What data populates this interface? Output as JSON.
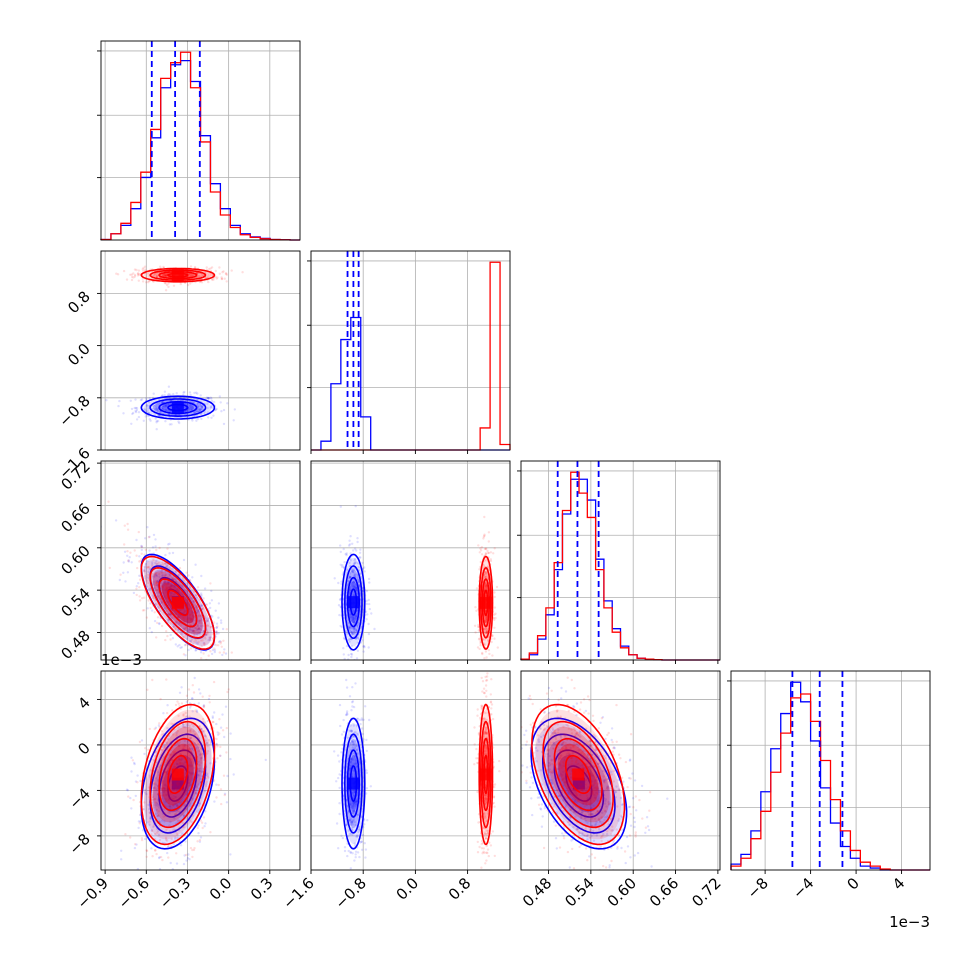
{
  "chart_data": {
    "type": "corner",
    "parameters": [
      "p0",
      "p1",
      "p2",
      "p3"
    ],
    "series": [
      {
        "color": "#0000ff"
      },
      {
        "color": "#ff0000"
      }
    ],
    "quantile_lines": {
      "color": "#0000ff",
      "p0": [
        -0.56,
        -0.39,
        -0.21
      ],
      "p1": [
        -1.04,
        -0.95,
        -0.87
      ],
      "p2": [
        0.493,
        0.521,
        0.551
      ],
      "p3": [
        -5.6,
        -3.2,
        -1.2
      ]
    },
    "ranges": {
      "p0": [
        -0.93,
        0.52
      ],
      "p1": [
        -1.6,
        1.45
      ],
      "p2": [
        0.441,
        0.723
      ],
      "p3": [
        -11.0,
        6.5
      ]
    },
    "ticks": {
      "p0": [
        "-0.9",
        "-0.6",
        "-0.3",
        "0.0",
        "0.3"
      ],
      "p1": [
        "-1.6",
        "-0.8",
        "0.0",
        "0.8"
      ],
      "p2": [
        "0.48",
        "0.54",
        "0.60",
        "0.66",
        "0.72"
      ],
      "p3": [
        "-8",
        "-4",
        "0",
        "4"
      ]
    },
    "tick_values": {
      "p0": [
        -0.9,
        -0.6,
        -0.3,
        0.0,
        0.3
      ],
      "p1": [
        -1.6,
        -0.8,
        0.0,
        0.8
      ],
      "p2": [
        0.48,
        0.54,
        0.6,
        0.66,
        0.72
      ],
      "p3": [
        -8,
        -4,
        0,
        4
      ]
    },
    "offset_label": "1e−3",
    "histograms": {
      "p0": {
        "bins": [
          -0.93,
          0.52,
          20
        ],
        "blue": [
          0.5,
          6,
          14,
          30,
          60,
          98,
          146,
          168,
          172,
          152,
          100,
          54,
          30,
          14,
          6,
          3,
          1.5,
          0.5,
          0.2,
          0
        ],
        "red": [
          0.5,
          6,
          16,
          36,
          65,
          106,
          155,
          170,
          180,
          146,
          94,
          46,
          24,
          12,
          5,
          2.5,
          1.2,
          0.5,
          0.2,
          0
        ]
      },
      "p1": {
        "bins": [
          -1.6,
          1.45,
          20
        ],
        "blue": [
          0,
          8,
          60,
          100,
          120,
          30,
          0,
          0,
          0,
          0,
          0,
          0,
          0,
          0,
          0,
          0,
          0,
          0,
          0,
          0
        ],
        "red": [
          0,
          0,
          0,
          0,
          0,
          0,
          0,
          0,
          0,
          0,
          0,
          0,
          0,
          0,
          0,
          0,
          0,
          20,
          170,
          5
        ]
      },
      "p2": {
        "bins": [
          0.441,
          0.723,
          24
        ],
        "blue": [
          0.5,
          3,
          12,
          26,
          52,
          84,
          104,
          104,
          92,
          58,
          34,
          18,
          8,
          3,
          1,
          0.5,
          0.2,
          0,
          0,
          0,
          0,
          0,
          0,
          0
        ],
        "red": [
          0.5,
          4,
          14,
          30,
          56,
          86,
          108,
          96,
          82,
          52,
          30,
          16,
          7,
          3,
          1,
          0.5,
          0.2,
          0,
          0,
          0,
          0,
          0,
          0,
          0
        ]
      },
      "p3": {
        "bins": [
          -11.0,
          6.5,
          20
        ],
        "blue": [
          3,
          8,
          20,
          40,
          62,
          80,
          96,
          86,
          66,
          42,
          24,
          12,
          6,
          2,
          1,
          0,
          0,
          0,
          0,
          0
        ],
        "red": [
          2,
          6,
          16,
          30,
          50,
          70,
          88,
          90,
          76,
          56,
          36,
          20,
          10,
          4,
          2,
          0.5,
          0,
          0,
          0,
          0
        ]
      }
    },
    "correlations": {
      "p2_p0": -0.72,
      "p3_p0": 0.35,
      "p3_p2": -0.45
    }
  }
}
